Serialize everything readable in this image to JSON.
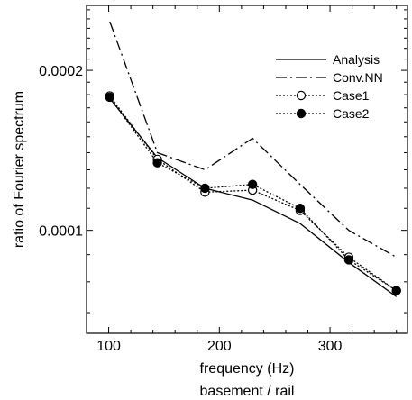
{
  "chart_data": {
    "type": "line",
    "title": "",
    "xlabel": "frequency (Hz)",
    "ylabel": "ratio of Fourier spectrum",
    "caption": "basement / rail",
    "y_scale": "log",
    "xlim": [
      80,
      370
    ],
    "ylim": [
      6.4e-05,
      0.000265
    ],
    "x_ticks": [
      {
        "value": 100,
        "label": "100"
      },
      {
        "value": 200,
        "label": "200"
      },
      {
        "value": 300,
        "label": "300"
      }
    ],
    "y_ticks": [
      {
        "value": 0.0001,
        "label": "0.0001"
      },
      {
        "value": 0.0002,
        "label": "0.0002"
      }
    ],
    "legend_position": "top-right",
    "x": [
      101,
      144,
      187,
      230,
      273,
      317,
      360
    ],
    "series": [
      {
        "name": "Analysis",
        "style": "solid",
        "marker": "none",
        "color": "#000000",
        "values": [
          0.000177,
          0.000137,
          0.00012,
          0.000114,
          0.000103,
          8.7e-05,
          7.5e-05
        ]
      },
      {
        "name": "Conv.NN",
        "style": "dashdot",
        "marker": "none",
        "color": "#000000",
        "values": [
          0.000247,
          0.00014,
          0.00013,
          0.000149,
          0.000122,
          0.0001,
          8.9e-05
        ]
      },
      {
        "name": "Case1",
        "style": "dotted",
        "marker": "open-circle",
        "color": "#000000",
        "values": [
          0.000179,
          0.000136,
          0.000118,
          0.000119,
          0.000109,
          8.9e-05,
          7.7e-05
        ]
      },
      {
        "name": "Case2",
        "style": "dotted",
        "marker": "filled-circle",
        "color": "#000000",
        "values": [
          0.000178,
          0.000134,
          0.00012,
          0.000122,
          0.00011,
          8.8e-05,
          7.7e-05
        ]
      }
    ]
  }
}
